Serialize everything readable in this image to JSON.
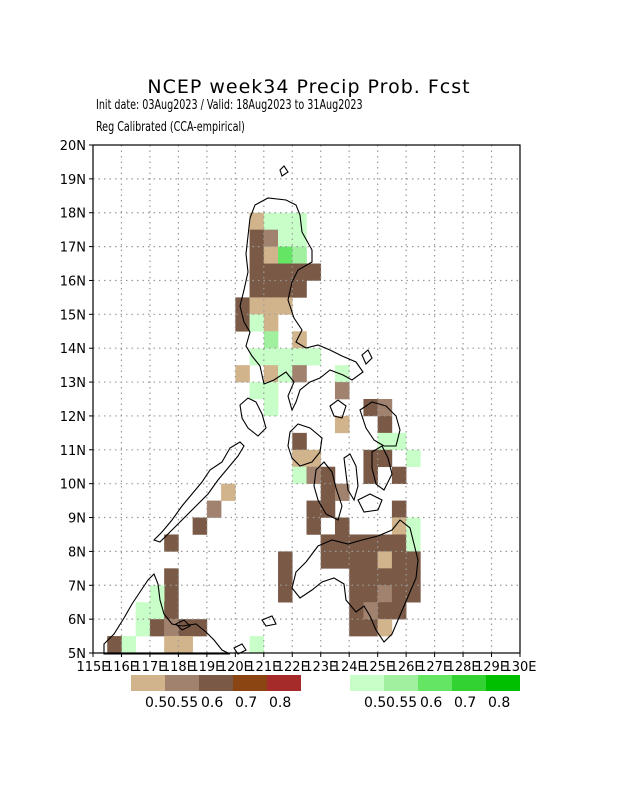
{
  "header": {
    "title": "NCEP week34 Precip Prob. Fcst",
    "subtitle1": "Init date: 03Aug2023 / Valid: 18Aug2023 to 31Aug2023",
    "subtitle2": "Reg Calibrated (CCA-empirical)"
  },
  "map": {
    "lon_range": [
      115,
      130
    ],
    "lat_range": [
      5,
      20
    ],
    "x_ticks": [
      "115E",
      "116E",
      "117E",
      "118E",
      "119E",
      "120E",
      "121E",
      "122E",
      "123E",
      "124E",
      "125E",
      "126E",
      "127E",
      "128E",
      "129E",
      "130E"
    ],
    "y_ticks": [
      "5N",
      "6N",
      "7N",
      "8N",
      "9N",
      "10N",
      "11N",
      "12N",
      "13N",
      "14N",
      "15N",
      "16N",
      "17N",
      "18N",
      "19N",
      "20N"
    ],
    "grid": "dotted"
  },
  "legend": {
    "dry": {
      "colors": [
        "#d2b48c",
        "#a0826e",
        "#7a5a46",
        "#8b4513",
        "#a52a2a"
      ],
      "labels": [
        "0.5",
        "0.55",
        "0.6",
        "0.7",
        "0.8"
      ]
    },
    "wet": {
      "colors": [
        "#c8ffc8",
        "#a0f0a0",
        "#64e664",
        "#32d232",
        "#00be00"
      ],
      "labels": [
        "0.5",
        "0.55",
        "0.6",
        "0.7",
        "0.8"
      ]
    }
  }
}
